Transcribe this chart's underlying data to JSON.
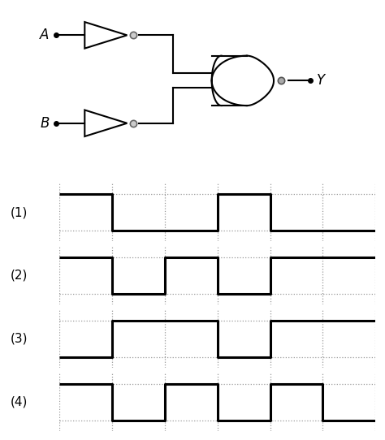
{
  "fig_width": 4.74,
  "fig_height": 5.42,
  "dpi": 100,
  "background_color": "#ffffff",
  "waveforms": {
    "grid_color": "#999999",
    "line_color": "#000000",
    "labels": [
      "(1)",
      "(2)",
      "(3)",
      "(4)"
    ],
    "t_points": [
      0,
      1,
      2,
      3,
      4,
      5,
      6
    ],
    "signals": [
      [
        1,
        0,
        0,
        1,
        0,
        0,
        0
      ],
      [
        1,
        0,
        1,
        0,
        1,
        1,
        1
      ],
      [
        0,
        1,
        1,
        0,
        1,
        1,
        1
      ],
      [
        1,
        0,
        1,
        0,
        1,
        0,
        0
      ]
    ]
  }
}
